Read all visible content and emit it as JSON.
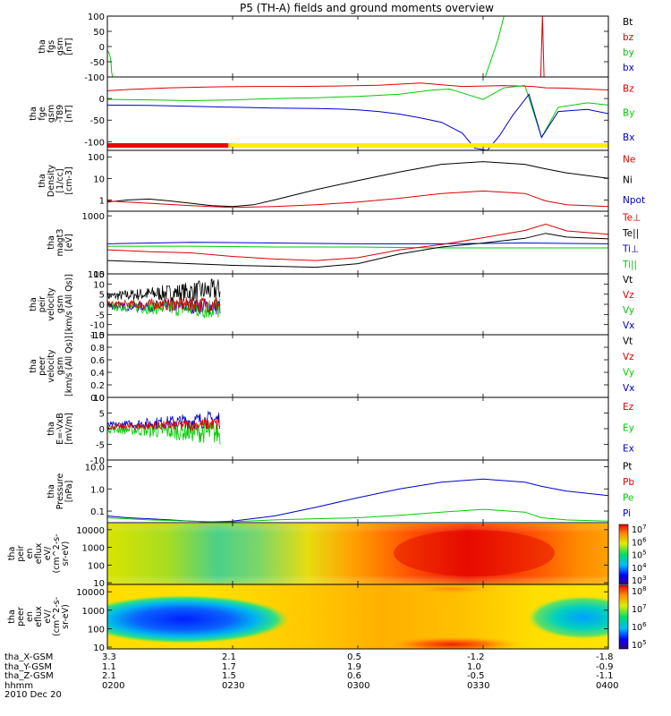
{
  "chart_data": {
    "type": "line",
    "title": "P5 (TH-A) fields and ground moments overview",
    "date": "2010 Dec 20",
    "time_axis": {
      "ticks": [
        "0200",
        "0230",
        "0300",
        "0330",
        "0400"
      ],
      "row_labels": [
        "tha_X-GSM",
        "tha_Y-GSM",
        "tha_Z-GSM",
        "hhmm"
      ],
      "positions": [
        {
          "x": "3.3",
          "y": "1.1",
          "z": "2.1"
        },
        {
          "x": "2.1",
          "y": "1.7",
          "z": "1.5"
        },
        {
          "x": "0.5",
          "y": "1.9",
          "z": "0.6"
        },
        {
          "x": "-1.2",
          "y": "1.0",
          "z": "-0.5"
        },
        {
          "x": "-1.8",
          "y": "-0.9",
          "z": "-1.1"
        }
      ]
    },
    "panels": [
      {
        "id": "fgs",
        "ylabel": [
          "tha",
          "fgs",
          "gsm",
          "[nT]"
        ],
        "ylim": [
          -100,
          100
        ],
        "yticks": [
          "100",
          "50",
          "0",
          "-50",
          "-100"
        ],
        "legend": [
          {
            "name": "Bt",
            "color": "#000000"
          },
          {
            "name": "bz",
            "color": "#dd0000"
          },
          {
            "name": "by",
            "color": "#00cc00"
          },
          {
            "name": "bx",
            "color": "#0000cc"
          }
        ],
        "series": [
          {
            "name": "by",
            "color": "#00cc00",
            "x": [
              0,
              0.1,
              0.25,
              0.4,
              0.6,
              0.75,
              0.85,
              0.96,
              1.0,
              1.05,
              1.15,
              1.23
            ],
            "y": [
              -15,
              -15,
              -18,
              -22,
              -30,
              -40,
              -50,
              -70,
              -82,
              -86,
              -94,
              -100
            ]
          },
          {
            "name": "by",
            "color": "#00cc00",
            "x": [
              90.5,
              93.5,
              95,
              97
            ],
            "y": [
              -100,
              20,
              100,
              100
            ]
          },
          {
            "name": "bz",
            "color": "#dd0000",
            "x": [
              103.8,
              104.2,
              104.6
            ],
            "y": [
              -100,
              100,
              -100
            ]
          }
        ]
      },
      {
        "id": "fge",
        "ylabel": [
          "tha",
          "fge",
          "gsm",
          "-T89",
          "[nT]"
        ],
        "ylim": [
          -120,
          50
        ],
        "yticks": [
          "0",
          "-50",
          "-100"
        ],
        "legend": [
          {
            "name": "Bz",
            "color": "#dd0000"
          },
          {
            "name": "By",
            "color": "#00cc00"
          },
          {
            "name": "Bx",
            "color": "#0000cc"
          }
        ],
        "series": [
          {
            "name": "Bz",
            "color": "#dd0000",
            "x": [
              0,
              5,
              15,
              25,
              35,
              45,
              55,
              65,
              75,
              85,
              95,
              102,
              105,
              110,
              120
            ],
            "y": [
              18,
              21,
              25,
              27,
              28,
              28,
              29,
              31,
              36,
              28,
              30,
              28,
              25,
              24,
              20
            ]
          },
          {
            "name": "By",
            "color": "#00cc00",
            "x": [
              0,
              10,
              20,
              30,
              40,
              50,
              60,
              70,
              78,
              82,
              86,
              90,
              95,
              100,
              104,
              108,
              115,
              120
            ],
            "y": [
              -2,
              -3,
              -5,
              -3,
              0,
              2,
              5,
              10,
              20,
              22,
              10,
              -2,
              25,
              30,
              -90,
              -20,
              -10,
              -15
            ]
          },
          {
            "name": "Bx",
            "color": "#0000cc",
            "x": [
              0,
              10,
              20,
              30,
              40,
              50,
              55,
              60,
              65,
              70,
              75,
              80,
              85,
              88,
              91,
              94,
              97,
              101,
              104,
              108,
              115,
              120
            ],
            "y": [
              -15,
              -16,
              -18,
              -20,
              -22,
              -23,
              -24,
              -26,
              -30,
              -36,
              -45,
              -55,
              -80,
              -115,
              -120,
              -85,
              -40,
              10,
              -90,
              -30,
              -25,
              -35
            ]
          }
        ],
        "bar": [
          {
            "from": 0,
            "to": 29,
            "color": "#ee0000"
          },
          {
            "from": 29,
            "to": 120,
            "color": "#ffee00"
          }
        ]
      },
      {
        "id": "density",
        "ylabel": [
          "tha",
          "Density",
          "[1/cc]",
          "[cm-3]"
        ],
        "yscale": "log",
        "ylim": [
          0.3,
          200
        ],
        "yticks": [
          "100",
          "10",
          "1"
        ],
        "legend": [
          {
            "name": "Ne",
            "color": "#dd0000"
          },
          {
            "name": "Ni",
            "color": "#000000"
          },
          {
            "name": "Npot",
            "color": "#0000cc"
          }
        ],
        "series": [
          {
            "name": "Ni",
            "color": "#000000",
            "x": [
              0,
              5,
              10,
              15,
              20,
              25,
              30,
              35,
              40,
              50,
              60,
              70,
              80,
              90,
              100,
              104,
              110,
              120
            ],
            "y": [
              0.8,
              1.0,
              1.1,
              0.9,
              0.7,
              0.55,
              0.5,
              0.6,
              1.0,
              3.0,
              8,
              20,
              45,
              60,
              45,
              30,
              18,
              10
            ]
          },
          {
            "name": "Ne",
            "color": "#dd0000",
            "x": [
              0,
              10,
              20,
              30,
              40,
              50,
              60,
              70,
              80,
              90,
              100,
              105,
              110,
              120
            ],
            "y": [
              0.9,
              0.7,
              0.55,
              0.45,
              0.5,
              0.6,
              0.8,
              1.2,
              2.0,
              2.6,
              2.0,
              0.9,
              0.6,
              0.5
            ]
          }
        ]
      },
      {
        "id": "magt3",
        "ylabel": [
          "tha",
          "magt3",
          "[eV]"
        ],
        "yscale": "log",
        "ylim": [
          100,
          1200
        ],
        "yticks": [
          "1000",
          "100"
        ],
        "legend": [
          {
            "name": "Te⊥",
            "color": "#dd0000"
          },
          {
            "name": "Te||",
            "color": "#000000"
          },
          {
            "name": "Ti⊥",
            "color": "#0000cc"
          },
          {
            "name": "Ti||",
            "color": "#00cc00"
          }
        ],
        "series": [
          {
            "name": "Ti⊥",
            "color": "#0000cc",
            "x": [
              0,
              20,
              40,
              60,
              80,
              100,
              120
            ],
            "y": [
              330,
              350,
              340,
              330,
              330,
              340,
              330
            ]
          },
          {
            "name": "Ti||",
            "color": "#00cc00",
            "x": [
              0,
              20,
              40,
              60,
              80,
              100,
              120
            ],
            "y": [
              300,
              300,
              290,
              290,
              280,
              280,
              280
            ]
          },
          {
            "name": "Te⊥",
            "color": "#dd0000",
            "x": [
              0,
              10,
              20,
              30,
              40,
              50,
              60,
              70,
              80,
              90,
              100,
              105,
              110,
              120
            ],
            "y": [
              260,
              240,
              230,
              200,
              180,
              170,
              190,
              260,
              320,
              420,
              560,
              720,
              550,
              480
            ]
          },
          {
            "name": "Te||",
            "color": "#000000",
            "x": [
              0,
              10,
              20,
              30,
              40,
              50,
              60,
              70,
              80,
              90,
              100,
              105,
              110,
              120
            ],
            "y": [
              170,
              160,
              150,
              140,
              135,
              130,
              150,
              220,
              290,
              340,
              410,
              500,
              430,
              400
            ]
          }
        ]
      },
      {
        "id": "peir-velocity",
        "ylabel": [
          "tha",
          "peir",
          "velocity",
          "gsm",
          "[km/s (All Qs)]"
        ],
        "ylim": [
          -15,
          15
        ],
        "yticks": [
          "15",
          "10",
          "5",
          "0",
          "-5",
          "-10",
          "-15"
        ],
        "legend": [
          {
            "name": "Vt",
            "color": "#000000"
          },
          {
            "name": "Vz",
            "color": "#dd0000"
          },
          {
            "name": "Vy",
            "color": "#00cc00"
          },
          {
            "name": "Vx",
            "color": "#0000cc"
          }
        ],
        "noisy": {
          "to": 27,
          "series": [
            {
              "name": "Vt",
              "color": "#000000",
              "base": 4,
              "amp": 4,
              "drift": 3
            },
            {
              "name": "Vx",
              "color": "#0000cc",
              "base": -1,
              "amp": 3,
              "drift": 0
            },
            {
              "name": "Vy",
              "color": "#00cc00",
              "base": -1,
              "amp": 4,
              "drift": -1
            },
            {
              "name": "Vz",
              "color": "#dd0000",
              "base": 0,
              "amp": 3,
              "drift": 0
            }
          ]
        }
      },
      {
        "id": "peer-velocity",
        "ylabel": [
          "tha",
          "peer",
          "velocity",
          "gsm",
          "[km/s (All Qs)]"
        ],
        "ylim": [
          0,
          1
        ],
        "yticks": [
          "1.0",
          "0.8",
          "0.6",
          "0.4",
          "0.2",
          "0.0"
        ],
        "legend": [
          {
            "name": "Vt",
            "color": "#000000"
          },
          {
            "name": "Vz",
            "color": "#dd0000"
          },
          {
            "name": "Vy",
            "color": "#00cc00"
          },
          {
            "name": "Vx",
            "color": "#0000cc"
          }
        ]
      },
      {
        "id": "efield",
        "ylabel": [
          "tha",
          "E=-VxB",
          "[mV/m]"
        ],
        "ylim": [
          -10,
          10
        ],
        "yticks": [
          "10",
          "5",
          "0",
          "-5",
          "-10"
        ],
        "legend": [
          {
            "name": "Ez",
            "color": "#dd0000"
          },
          {
            "name": "Ey",
            "color": "#00cc00"
          },
          {
            "name": "Ex",
            "color": "#0000cc"
          }
        ],
        "noisy": {
          "to": 27,
          "series": [
            {
              "name": "Ex",
              "color": "#0000cc",
              "base": 1,
              "amp": 2,
              "drift": 2
            },
            {
              "name": "Ey",
              "color": "#00cc00",
              "base": 0,
              "amp": 2.5,
              "drift": -1.5
            },
            {
              "name": "Ez",
              "color": "#dd0000",
              "base": 0.5,
              "amp": 1.5,
              "drift": 1
            }
          ]
        }
      },
      {
        "id": "pressure",
        "ylabel": [
          "tha",
          "Pressure",
          "[nPa]"
        ],
        "yscale": "log",
        "ylim": [
          0.03,
          20
        ],
        "yticks": [
          "10.0",
          "1.0",
          "0.1"
        ],
        "legend": [
          {
            "name": "Pt",
            "color": "#000000"
          },
          {
            "name": "Pb",
            "color": "#dd0000"
          },
          {
            "name": "Pe",
            "color": "#00cc00"
          },
          {
            "name": "Pi",
            "color": "#0000cc"
          }
        ],
        "series": [
          {
            "name": "Pi",
            "color": "#0000cc",
            "x": [
              0,
              5,
              10,
              15,
              20,
              25,
              30,
              40,
              50,
              60,
              70,
              80,
              90,
              100,
              104,
              110,
              120
            ],
            "y": [
              0.06,
              0.05,
              0.045,
              0.04,
              0.035,
              0.033,
              0.035,
              0.06,
              0.15,
              0.4,
              1.0,
              2.0,
              2.8,
              2.0,
              1.3,
              0.8,
              0.5
            ]
          },
          {
            "name": "Pe",
            "color": "#00cc00",
            "x": [
              0,
              10,
              20,
              25,
              30,
              40,
              50,
              60,
              70,
              80,
              90,
              100,
              104,
              110,
              120
            ],
            "y": [
              0.05,
              0.04,
              0.035,
              0.032,
              0.033,
              0.04,
              0.045,
              0.05,
              0.065,
              0.09,
              0.12,
              0.09,
              0.05,
              0.04,
              0.035
            ]
          }
        ]
      },
      {
        "id": "peir-spectrogram",
        "type": "heatmap",
        "ylabel": [
          "tha",
          "peir",
          "en",
          "eflux",
          "eV/",
          "(cm^2-s-",
          "sr-eV)"
        ],
        "yscale": "log",
        "ylim": [
          8,
          25000
        ],
        "yticks": [
          "10000",
          "1000",
          "100",
          "10"
        ],
        "colorbar": {
          "scale": "log",
          "ticks": [
            "10^7",
            "10^6",
            "10^5",
            "10^4",
            "10^3"
          ]
        }
      },
      {
        "id": "peer-spectrogram",
        "type": "heatmap",
        "ylabel": [
          "tha",
          "peer",
          "en",
          "eflux",
          "eV/",
          "(cm^2-s-",
          "sr-eV)"
        ],
        "yscale": "log",
        "ylim": [
          8,
          25000
        ],
        "yticks": [
          "10000",
          "1000",
          "100",
          "10"
        ],
        "colorbar": {
          "scale": "log",
          "ticks": [
            "10^8",
            "10^7",
            "10^6",
            "10^5"
          ]
        }
      }
    ]
  }
}
